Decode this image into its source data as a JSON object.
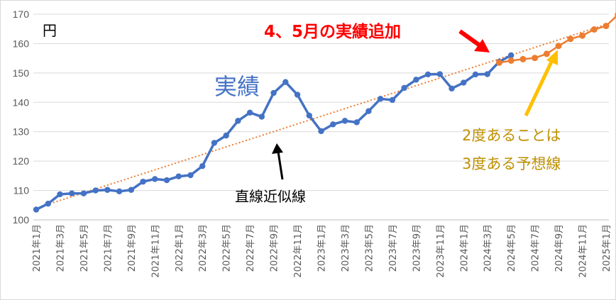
{
  "chart_data": {
    "type": "line",
    "unit_label": "円",
    "ylim": [
      100,
      170
    ],
    "y_ticks": [
      100,
      110,
      120,
      130,
      140,
      150,
      160,
      170
    ],
    "grid": true,
    "x_labels": [
      "2021年1月",
      "2021年3月",
      "2021年5月",
      "2021年7月",
      "2021年9月",
      "2021年11月",
      "2022年1月",
      "2022年3月",
      "2022年5月",
      "2022年7月",
      "2022年9月",
      "2022年11月",
      "2023年1月",
      "2023年3月",
      "2023年5月",
      "2023年7月",
      "2023年9月",
      "2023年11月",
      "2024年1月",
      "2024年3月",
      "2024年5月",
      "2024年7月",
      "2024年9月",
      "2024年11月",
      "2025年1月"
    ],
    "series": [
      {
        "name": "実績",
        "color": "#4472c4",
        "values": [
          103.5,
          105.5,
          108.7,
          109.0,
          109.0,
          110.0,
          110.2,
          109.7,
          110.2,
          113.0,
          113.9,
          113.5,
          114.8,
          115.2,
          118.3,
          126.2,
          128.7,
          133.7,
          136.5,
          135.1,
          143.2,
          146.9,
          142.6,
          135.5,
          130.2,
          132.5,
          133.7,
          133.2,
          137.0,
          141.2,
          140.8,
          144.9,
          147.7,
          149.5,
          149.6,
          144.7,
          146.7,
          149.5,
          149.6,
          153.8,
          156.0
        ]
      },
      {
        "name": "4、5月の実績追加",
        "color": "#ed7d31",
        "start_index": 39,
        "values": [
          153.5,
          154.2,
          154.7,
          155.1,
          156.5,
          159.2,
          161.6,
          162.7,
          164.8,
          166.0,
          169.8
        ]
      }
    ],
    "trendline": {
      "name": "直線近似線",
      "color": "#ed7d31",
      "start": 104.0,
      "end": 166.5
    },
    "annotations": {
      "actual_label": "実績",
      "added_label": "4、5月の実績追加",
      "trend_label": "直線近似線",
      "forecast_line1": "2度あることは",
      "forecast_line2": "3度ある予想線"
    },
    "colors": {
      "actual": "#4472c4",
      "added": "#ed7d31",
      "added_label": "#ff0000",
      "forecast_label": "#bf9000",
      "forecast_arrow": "#ffc000",
      "grid": "#d9d9d9"
    }
  }
}
